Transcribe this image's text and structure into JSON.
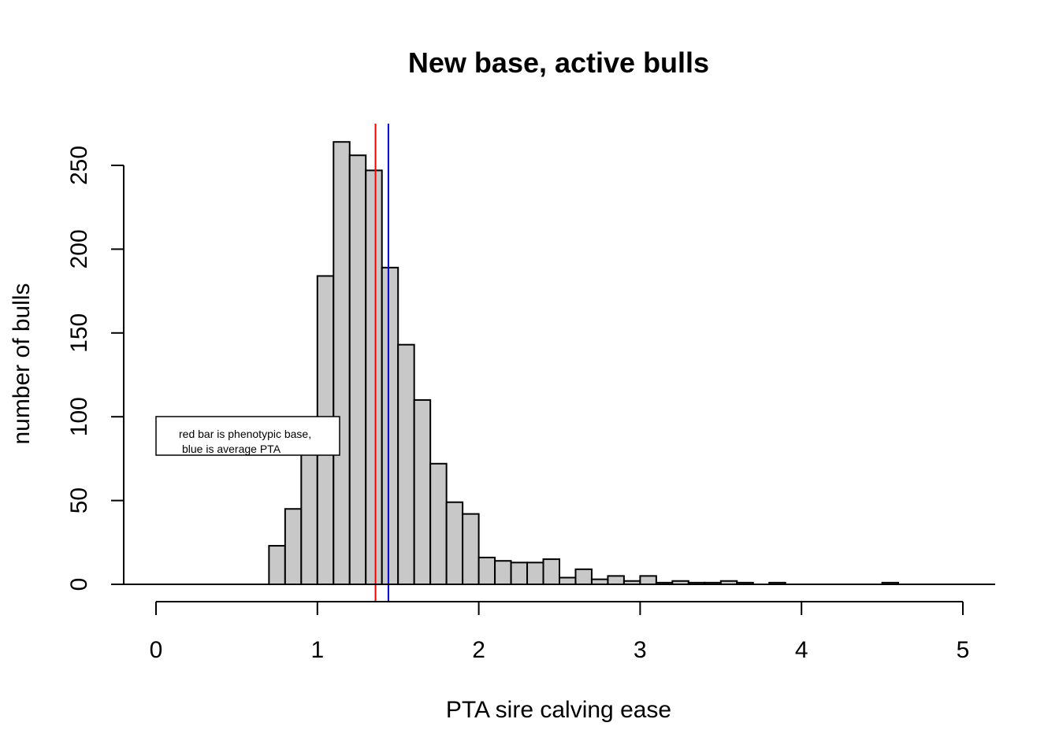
{
  "chart_data": {
    "type": "bar",
    "title": "New base, active bulls",
    "xlabel": "PTA sire calving ease",
    "ylabel": "number of bulls",
    "xlim": [
      0,
      5
    ],
    "ylim": [
      0,
      250
    ],
    "x_ticks": [
      "0",
      "1",
      "2",
      "3",
      "4",
      "5"
    ],
    "y_ticks": [
      "0",
      "50",
      "100",
      "150",
      "200",
      "250"
    ],
    "bin_width": 0.1,
    "bins_start": [
      0.7,
      0.8,
      0.9,
      1.0,
      1.1,
      1.2,
      1.3,
      1.4,
      1.5,
      1.6,
      1.7,
      1.8,
      1.9,
      2.0,
      2.1,
      2.2,
      2.3,
      2.4,
      2.5,
      2.6,
      2.7,
      2.8,
      2.9,
      3.0,
      3.1,
      3.2,
      3.3,
      3.4,
      3.5,
      3.6,
      3.7,
      3.8,
      3.9,
      4.0,
      4.1,
      4.2,
      4.3,
      4.4,
      4.5,
      4.6,
      4.7,
      4.8,
      4.9,
      5.0,
      5.1
    ],
    "values": [
      23,
      45,
      80,
      184,
      264,
      256,
      247,
      189,
      143,
      110,
      72,
      49,
      42,
      16,
      14,
      13,
      13,
      15,
      4,
      9,
      3,
      5,
      2,
      5,
      1,
      2,
      1,
      1,
      2,
      1,
      0,
      1,
      0,
      0,
      0,
      0,
      0,
      0,
      1,
      0,
      0,
      0,
      0,
      0,
      0
    ],
    "bar_color": "#c8c8c8",
    "vlines": [
      {
        "x": 1.36,
        "color": "#ff0000"
      },
      {
        "x": 1.44,
        "color": "#0000cc"
      }
    ],
    "legend": {
      "lines": [
        "red bar is phenotypic base,",
        "blue is average PTA"
      ]
    },
    "grid": false
  }
}
